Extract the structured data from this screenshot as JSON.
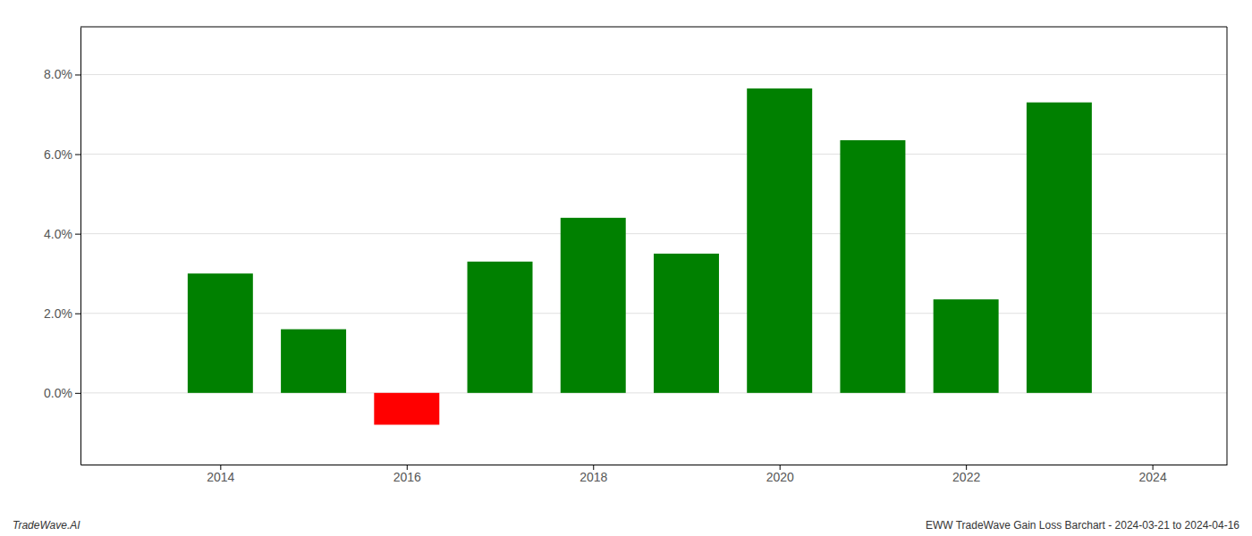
{
  "chart_data": {
    "type": "bar",
    "x": [
      2014,
      2015,
      2016,
      2017,
      2018,
      2019,
      2020,
      2021,
      2022,
      2023
    ],
    "values": [
      0.03,
      0.016,
      -0.008,
      0.033,
      0.044,
      0.035,
      0.0765,
      0.0635,
      0.0235,
      0.073
    ],
    "colors": [
      "#008000",
      "#008000",
      "#ff0000",
      "#008000",
      "#008000",
      "#008000",
      "#008000",
      "#008000",
      "#008000",
      "#008000"
    ],
    "xlim": [
      2012.5,
      2024.8
    ],
    "xticks": [
      2014,
      2016,
      2018,
      2020,
      2022,
      2024
    ],
    "ylim": [
      -0.018,
      0.092
    ],
    "yticks": [
      {
        "value": 0.0,
        "label": "0.0%"
      },
      {
        "value": 0.02,
        "label": "2.0%"
      },
      {
        "value": 0.04,
        "label": "4.0%"
      },
      {
        "value": 0.06,
        "label": "6.0%"
      },
      {
        "value": 0.08,
        "label": "8.0%"
      }
    ],
    "grid": true,
    "annotations": [
      "TradeWave.AI",
      "EWW TradeWave Gain Loss Barchart - 2024-03-21 to 2024-04-16"
    ]
  }
}
